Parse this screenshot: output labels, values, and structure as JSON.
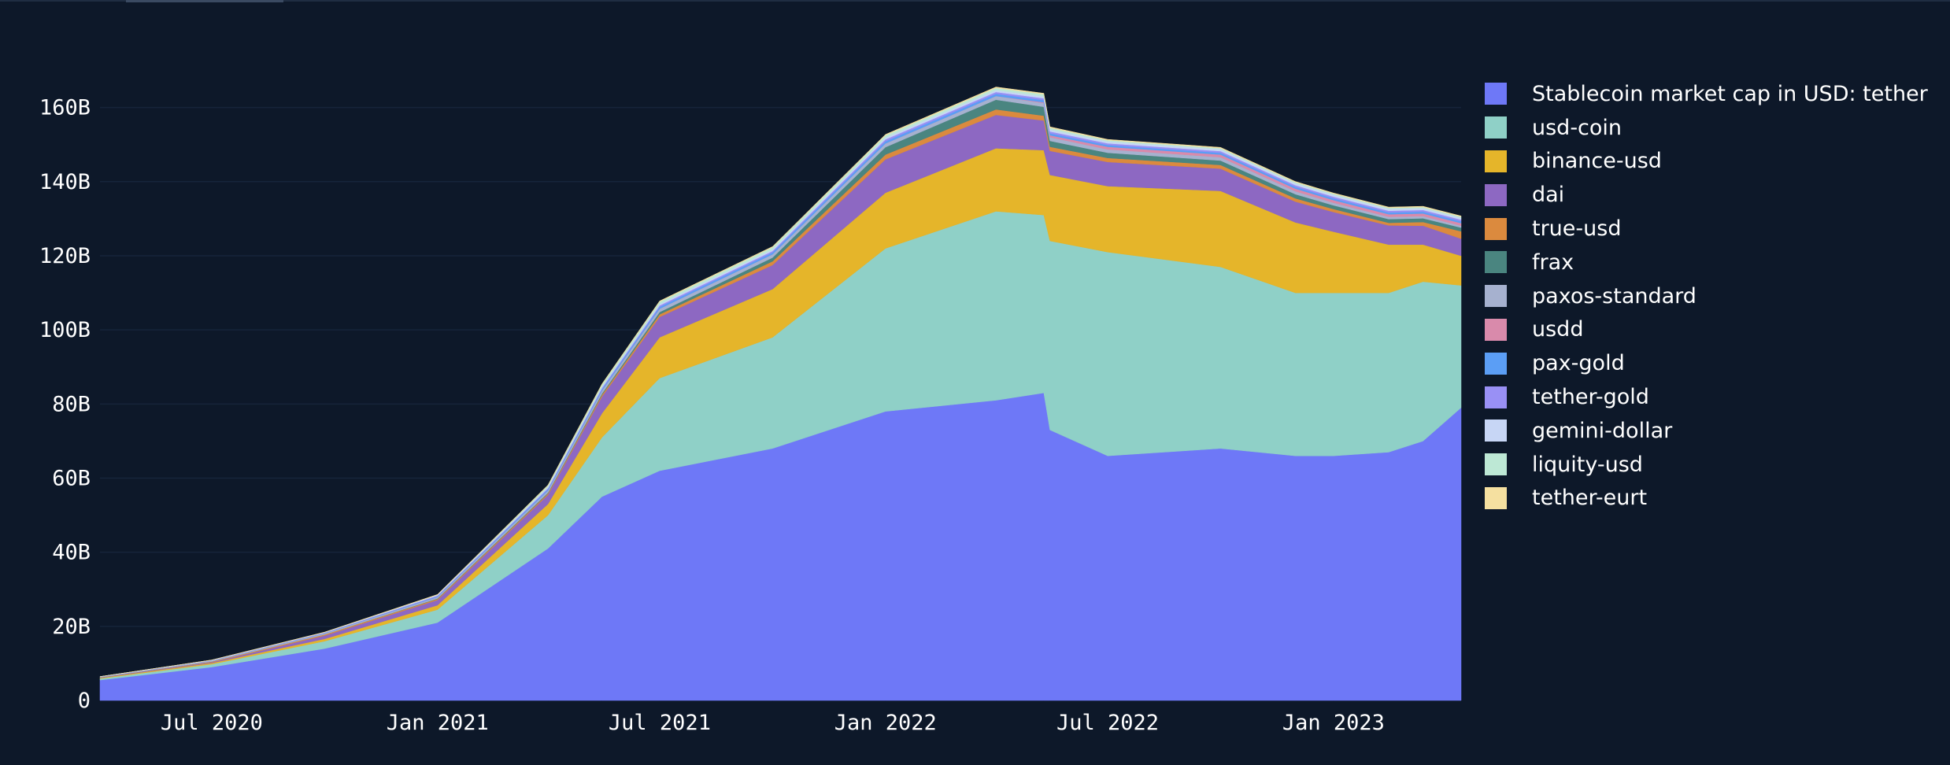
{
  "chart_data": {
    "type": "area",
    "stacked": true,
    "x": [
      "2020-04-01",
      "2020-07-01",
      "2020-10-01",
      "2021-01-01",
      "2021-04-01",
      "2021-05-15",
      "2021-07-01",
      "2021-10-01",
      "2022-01-01",
      "2022-04-01",
      "2022-05-10",
      "2022-05-15",
      "2022-07-01",
      "2022-10-01",
      "2022-12-01",
      "2023-01-01",
      "2023-02-15",
      "2023-03-15",
      "2023-04-15"
    ],
    "series": [
      {
        "name": "Stablecoin market cap in USD: tether",
        "color": "#6e78f7",
        "values": [
          5.5,
          9,
          14,
          21,
          41,
          55,
          62,
          68,
          78,
          81,
          83,
          73,
          66,
          68,
          66,
          66,
          67,
          70,
          79
        ]
      },
      {
        "name": "usd-coin",
        "color": "#8fd0c7",
        "values": [
          0.4,
          0.8,
          2,
          3.5,
          9,
          16,
          25,
          30,
          44,
          51,
          48,
          51,
          55,
          49,
          44,
          44,
          43,
          43,
          33
        ]
      },
      {
        "name": "binance-usd",
        "color": "#e5b52a",
        "values": [
          0.2,
          0.3,
          0.6,
          1.2,
          3,
          6.5,
          11,
          13,
          15,
          17,
          17.5,
          17.8,
          17.8,
          20.5,
          19,
          16.5,
          13,
          10,
          8
        ]
      },
      {
        "name": "dai",
        "color": "#8d68c2",
        "values": [
          0.1,
          0.2,
          0.9,
          1.4,
          2.5,
          4.5,
          5.5,
          6.5,
          9,
          9,
          8,
          6.5,
          6.5,
          6,
          5.6,
          5.3,
          5.2,
          5.1,
          4.6
        ]
      },
      {
        "name": "true-usd",
        "color": "#db8a3e",
        "values": [
          0.05,
          0.2,
          0.3,
          0.3,
          0.35,
          0.5,
          0.7,
          1,
          1.3,
          1.5,
          1.3,
          1.1,
          1.1,
          1.0,
          0.9,
          0.8,
          0.7,
          1.0,
          2.0
        ]
      },
      {
        "name": "frax",
        "color": "#4a8580",
        "values": [
          0,
          0,
          0,
          0.1,
          0.2,
          0.3,
          0.6,
          1,
          2,
          2.6,
          2.4,
          1.6,
          1.4,
          1.2,
          1.1,
          1.0,
          1.0,
          1.0,
          1.0
        ]
      },
      {
        "name": "paxos-standard",
        "color": "#a6b1cf",
        "values": [
          0.1,
          0.2,
          0.3,
          0.4,
          0.6,
          0.8,
          0.9,
          0.9,
          1,
          1,
          1,
          1,
          0.9,
          0.9,
          0.8,
          0.7,
          0.6,
          0.6,
          0.5
        ]
      },
      {
        "name": "usdd",
        "color": "#d98aab",
        "values": [
          0,
          0,
          0,
          0,
          0,
          0,
          0,
          0,
          0,
          0,
          0.2,
          0.5,
          0.7,
          0.7,
          0.7,
          0.7,
          0.7,
          0.7,
          0.7
        ]
      },
      {
        "name": "pax-gold",
        "color": "#5b9ef5",
        "values": [
          0.02,
          0.05,
          0.1,
          0.2,
          0.35,
          0.4,
          0.5,
          0.5,
          0.6,
          0.6,
          0.6,
          0.55,
          0.5,
          0.5,
          0.5,
          0.5,
          0.5,
          0.5,
          0.5
        ]
      },
      {
        "name": "tether-gold",
        "color": "#9990f5",
        "values": [
          0.02,
          0.05,
          0.1,
          0.2,
          0.3,
          0.35,
          0.4,
          0.4,
          0.5,
          0.5,
          0.5,
          0.5,
          0.45,
          0.45,
          0.45,
          0.45,
          0.45,
          0.45,
          0.45
        ]
      },
      {
        "name": "gemini-dollar",
        "color": "#c7d6f5",
        "values": [
          0.05,
          0.1,
          0.1,
          0.2,
          0.3,
          0.3,
          0.4,
          0.4,
          0.5,
          0.5,
          0.5,
          0.5,
          0.5,
          0.5,
          0.5,
          0.5,
          0.5,
          0.5,
          0.5
        ]
      },
      {
        "name": "liquity-usd",
        "color": "#bde8d5",
        "values": [
          0,
          0,
          0,
          0,
          0.4,
          0.6,
          0.6,
          0.6,
          0.6,
          0.6,
          0.6,
          0.5,
          0.35,
          0.3,
          0.3,
          0.3,
          0.3,
          0.3,
          0.3
        ]
      },
      {
        "name": "tether-eurt",
        "color": "#f5e0a0",
        "values": [
          0.02,
          0.03,
          0.05,
          0.1,
          0.15,
          0.2,
          0.2,
          0.2,
          0.25,
          0.25,
          0.25,
          0.25,
          0.2,
          0.2,
          0.2,
          0.2,
          0.2,
          0.2,
          0.2
        ]
      }
    ],
    "yticks": [
      0,
      20,
      40,
      60,
      80,
      100,
      120,
      140,
      160
    ],
    "ytick_labels": [
      "0",
      "20B",
      "40B",
      "60B",
      "80B",
      "100B",
      "120B",
      "140B",
      "160B"
    ],
    "xticks": [
      "2020-07-01",
      "2021-01-01",
      "2021-07-01",
      "2022-01-01",
      "2022-07-01",
      "2023-01-01"
    ],
    "xtick_labels": [
      "Jul 2020",
      "Jan 2021",
      "Jul 2021",
      "Jan 2022",
      "Jul 2022",
      "Jan 2023"
    ],
    "xlim": [
      "2020-04-01",
      "2023-04-15"
    ],
    "ylim": [
      0,
      175
    ],
    "grid": true,
    "legend_position": "right",
    "title": "",
    "xlabel": "",
    "ylabel": ""
  }
}
